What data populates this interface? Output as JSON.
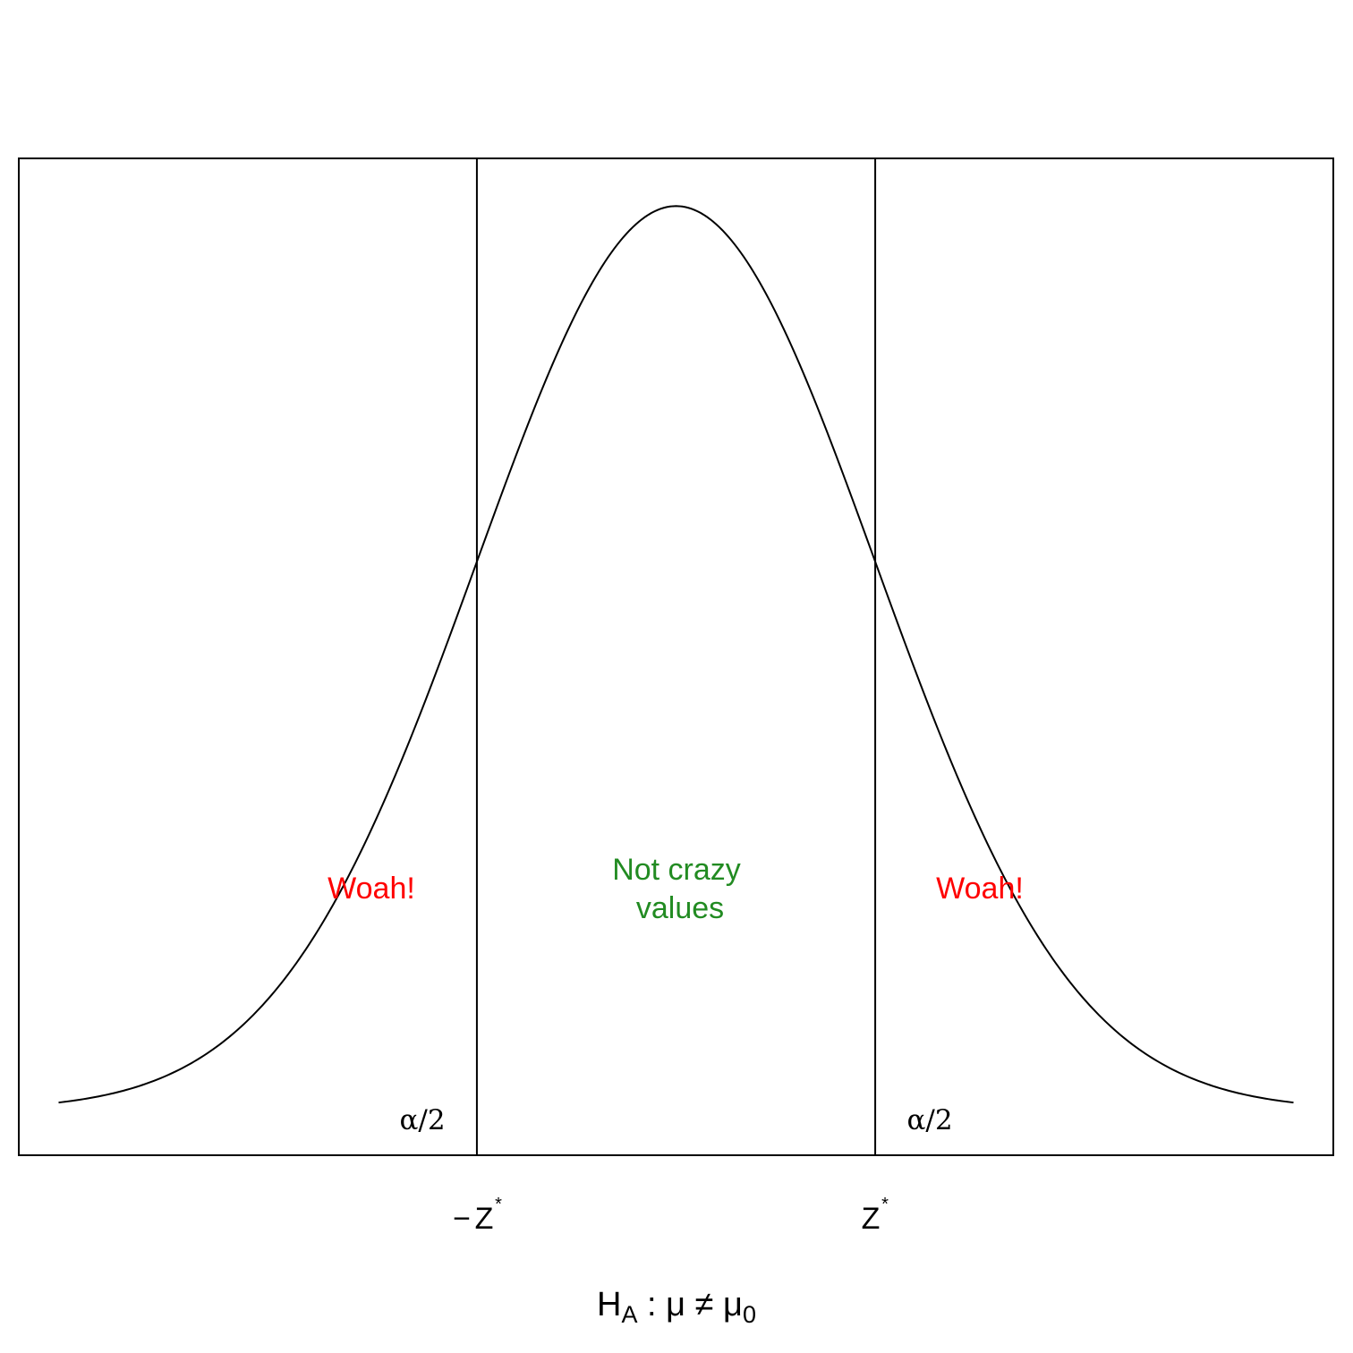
{
  "chart_data": {
    "type": "line",
    "title": "",
    "xlabel": {
      "main": "H",
      "sub": "A",
      "rest": " : μ ≠ μ",
      "rest_sub": "0"
    },
    "ylabel": "",
    "xlim": [
      -3.3,
      3.3
    ],
    "ylim": [
      -0.02,
      0.42
    ],
    "curve": {
      "name": "",
      "distribution": "standard normal density",
      "x_range": [
        -3.1,
        3.1
      ],
      "color": "#000000"
    },
    "critical_values": [
      -1.0,
      1.0
    ],
    "critical_labels": {
      "left": {
        "minus": "−",
        "main": "Z",
        "sup": "*"
      },
      "right": {
        "main": "Z",
        "sup": "*"
      }
    },
    "annotations": {
      "left_reject": {
        "text": "Woah!",
        "color": "#ff0000"
      },
      "right_reject": {
        "text": "Woah!",
        "color": "#ff0000"
      },
      "middle": {
        "line1": "Not crazy",
        "line2": "values",
        "color": "#228B22"
      },
      "left_tail": "α/2",
      "right_tail": "α/2"
    },
    "grid": false,
    "legend": "none",
    "frame": true
  }
}
